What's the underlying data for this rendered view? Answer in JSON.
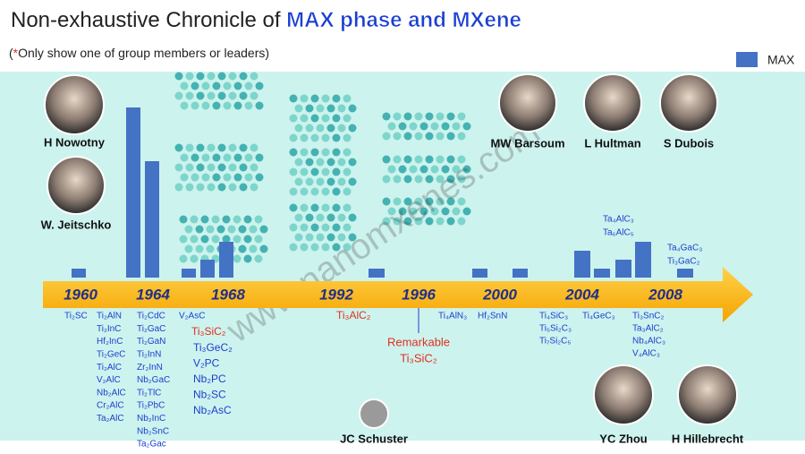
{
  "header": {
    "title": "Non-exhaustive Chronicle of ",
    "title_highlight": "MAX phase and MXene",
    "note_open": "(",
    "note_mark": "*",
    "note": "Only show one of group members or leaders)"
  },
  "legend": {
    "label": "MAX",
    "color": "#4472c4"
  },
  "bars": {
    "values": [
      1,
      19,
      13,
      1,
      2,
      4,
      1,
      1,
      1,
      3,
      1,
      2,
      4,
      1
    ]
  },
  "timeline": {
    "years": [
      "1960",
      "1964",
      "1968",
      "1992",
      "1996",
      "2000",
      "2004",
      "2008"
    ]
  },
  "people": [
    {
      "name": "H Nowotny"
    },
    {
      "name": "W. Jeitschko"
    },
    {
      "name": "MW Barsoum"
    },
    {
      "name": "L Hultman"
    },
    {
      "name": "S Dubois"
    },
    {
      "name": "JC Schuster"
    },
    {
      "name": "YC Zhou"
    },
    {
      "name": "H Hillebrecht"
    }
  ],
  "compound_groups": [
    {
      "color": "#1a3fd1",
      "items": [
        "Ti₂SC"
      ]
    },
    {
      "color": "#1a3fd1",
      "items": [
        "Ti₂AlN",
        "Ti₂InC",
        "Hf₂InC",
        "Ti₂GeC",
        "Ti₂AlC",
        "V₂AlC",
        "Nb₂AlC",
        "Cr₂AlC",
        "Ta₂AlC"
      ]
    },
    {
      "color": "#1a3fd1",
      "items": [
        "Ti₂CdC",
        "Ti₂GaC",
        "Ti₂GaN",
        "Ti₂InN",
        "Zr₂InN",
        "Nb₂GaC",
        "Ti₂TlC",
        "Ti₂PbC",
        "Nb₂InC",
        "Nb₂SnC",
        "Ta₂Gac"
      ]
    },
    {
      "color": "#1a3fd1",
      "items": [
        "V₂AsC"
      ]
    },
    {
      "color": "#e0301e",
      "items": [
        "Ti₃SiC₂"
      ]
    },
    {
      "color": "#1a3fd1",
      "items": [
        "Ti₃GeC₂",
        "V₂PC",
        "Nb₂PC",
        "Nb₂SC",
        "Nb₂AsC"
      ]
    },
    {
      "color": "#e0301e",
      "items": [
        "Ti₃AlC₂"
      ]
    },
    {
      "color": "#1a3fd1",
      "items": [
        "Ti₄AlN₃"
      ]
    },
    {
      "color": "#1a3fd1",
      "items": [
        "Hf₂SnN"
      ]
    },
    {
      "color": "#1a3fd1",
      "items": [
        "Ti₄SiC₃",
        "Ti₅Si₂C₃",
        "Ti₇Si₂C₅"
      ]
    },
    {
      "color": "#1a3fd1",
      "items": [
        "Ti₄GeC₃"
      ]
    },
    {
      "color": "#1a3fd1",
      "items": [
        "Ti₃SnC₂",
        "Ta₃AlC₂",
        "Nb₄AlC₃",
        "V₄AlC₃"
      ]
    },
    {
      "color": "#1a3fd1",
      "items": [
        "Ta₄AlC₃",
        "Ta₆AlC₅"
      ]
    },
    {
      "color": "#1a3fd1",
      "items": [
        "Ta₄GaC₃",
        "Ti₃GaC₂"
      ]
    }
  ],
  "annotation": {
    "label": "Remarkable",
    "compound": "Ti₃SiC₂",
    "color": "#e0301e"
  },
  "watermark": "www.nanomxenes.com"
}
